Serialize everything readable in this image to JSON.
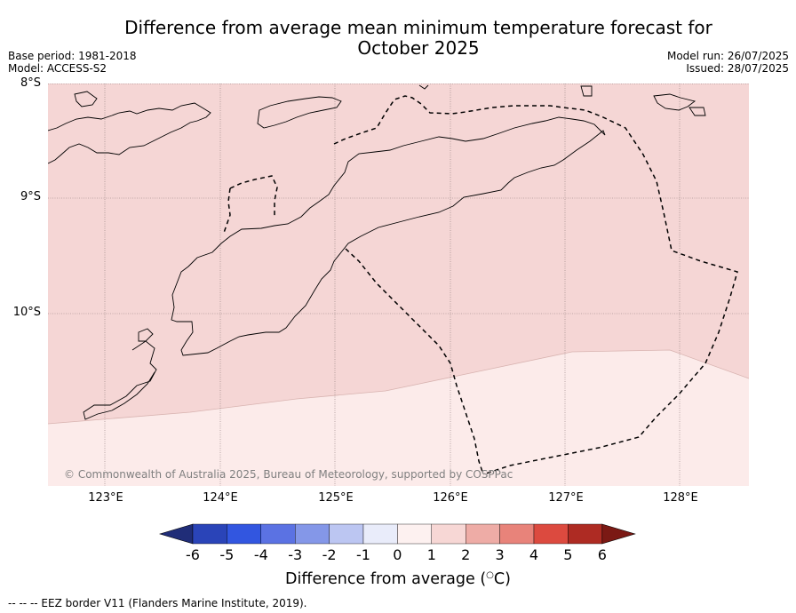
{
  "title": "Difference from average mean minimum temperature forecast for October 2025",
  "meta": {
    "base_period": "Base period: 1981-2018",
    "model": "Model: ACCESS-S2",
    "model_run": "Model run: 26/07/2025",
    "issued": "Issued: 28/07/2025"
  },
  "map": {
    "lat_labels": [
      "8°S",
      "9°S",
      "10°S"
    ],
    "lon_labels": [
      "123°E",
      "124°E",
      "125°E",
      "126°E",
      "127°E",
      "128°E"
    ],
    "lat_range": [
      -11.5,
      -8.0
    ],
    "lon_range": [
      122.5,
      128.6
    ],
    "copyright": "© Commonwealth of Australia 2025, Bureau of Meteorology, supported by COSPPac",
    "regions": [
      {
        "category": "1 to 2",
        "color": "#f5d6d5"
      },
      {
        "category": "0 to 1",
        "color": "#fcebea"
      }
    ],
    "grid": true,
    "eez_line_style": "dashed"
  },
  "colorbar": {
    "labels": [
      "-6",
      "-5",
      "-4",
      "-3",
      "-2",
      "-1",
      "0",
      "1",
      "2",
      "3",
      "4",
      "5",
      "6"
    ],
    "colors": [
      "#202d78",
      "#2a44b8",
      "#3256e0",
      "#5b72e3",
      "#8497e8",
      "#bcc6f2",
      "#e9ecfa",
      "#fdf1f0",
      "#f7d7d5",
      "#eeaca6",
      "#e8837a",
      "#dc4a3f",
      "#ae2b23",
      "#7b1914"
    ],
    "title": "Difference from average (°C)",
    "title_main": "Difference from average (",
    "title_unit": "C)"
  },
  "footnote": "-- -- -- EEZ border V11 (Flanders Marine Institute, 2019)."
}
